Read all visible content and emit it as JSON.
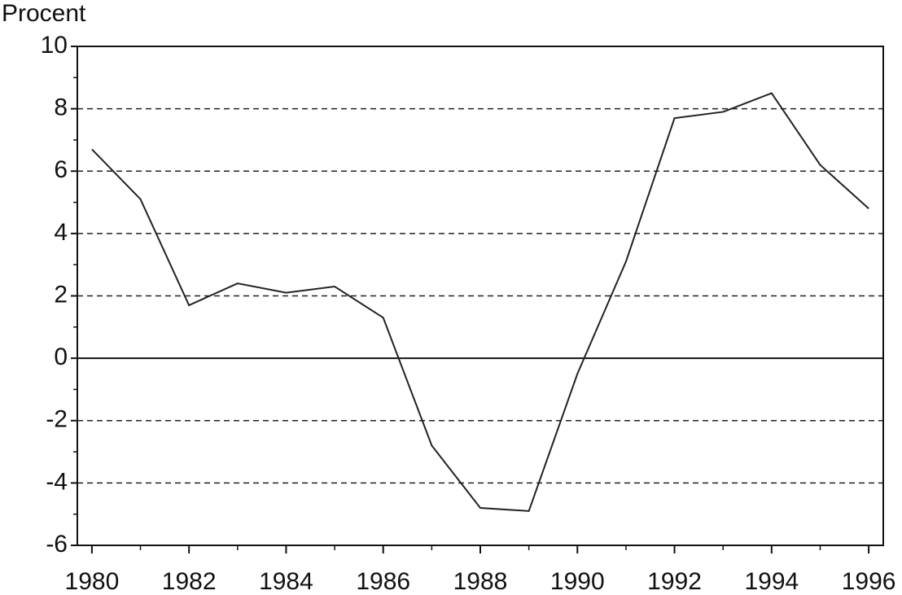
{
  "chart_data": {
    "type": "line",
    "ylabel": "Procent",
    "x": [
      1980,
      1981,
      1982,
      1983,
      1984,
      1985,
      1986,
      1987,
      1988,
      1989,
      1990,
      1991,
      1992,
      1993,
      1994,
      1995,
      1996
    ],
    "values": [
      6.7,
      5.1,
      1.7,
      2.4,
      2.1,
      2.3,
      1.3,
      -2.8,
      -4.8,
      -4.9,
      -0.5,
      3.1,
      7.7,
      7.9,
      8.5,
      6.2,
      4.8
    ],
    "color": "#222222",
    "xlim": [
      1979.7,
      1996.3
    ],
    "xticks": [
      1980,
      1982,
      1984,
      1986,
      1988,
      1990,
      1992,
      1994,
      1996
    ],
    "ylim": [
      -6,
      10
    ],
    "yticks": [
      -6,
      -4,
      -2,
      0,
      2,
      4,
      6,
      8,
      10
    ],
    "grid": "dashed",
    "zero_line": true,
    "minor_ticks": true
  }
}
